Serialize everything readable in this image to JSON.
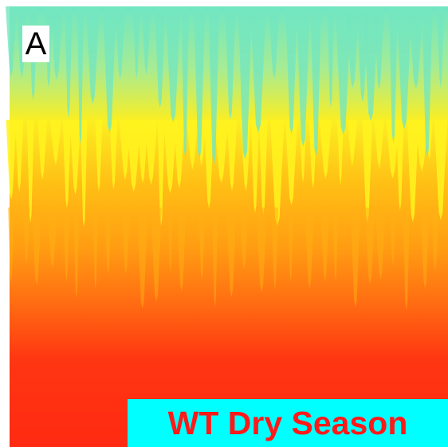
{
  "panel_label": "A",
  "caption": "WT Dry Season"
}
